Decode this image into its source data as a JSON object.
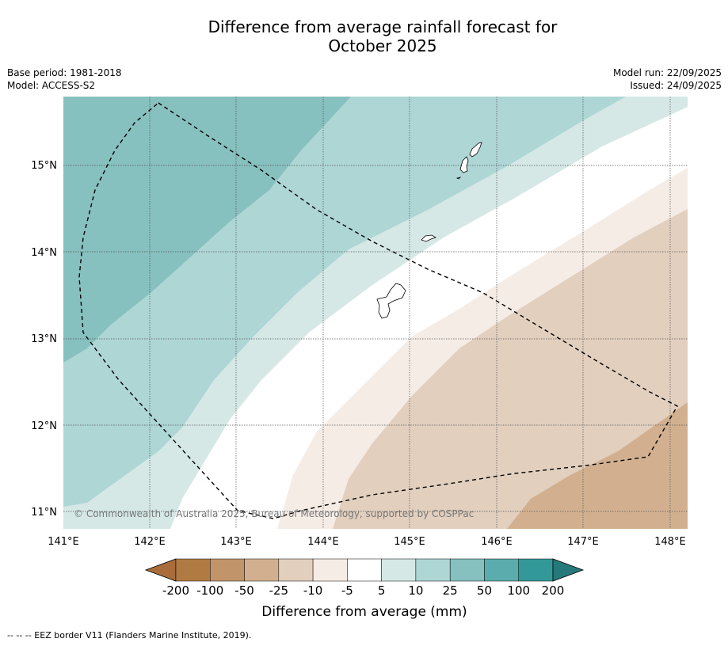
{
  "title_line1": "Difference from average rainfall forecast for",
  "title_line2": "October 2025",
  "meta_left": {
    "base_period": "Base period: 1981-2018",
    "model": "Model: ACCESS-S2"
  },
  "meta_right": {
    "model_run": "Model run: 22/09/2025",
    "issued": "Issued: 24/09/2025"
  },
  "map": {
    "lat_labels": [
      "15°N",
      "14°N",
      "13°N",
      "12°N",
      "11°N"
    ],
    "lon_labels": [
      "141°E",
      "142°E",
      "143°E",
      "144°E",
      "145°E",
      "146°E",
      "147°E",
      "148°E"
    ],
    "credit": "© Commonwealth of Australia 2025, Bureau of Meteorology, supported by COSPPac"
  },
  "colorbar": {
    "ticks": [
      "-200",
      "-100",
      "-50",
      "-25",
      "-10",
      "-5",
      "5",
      "10",
      "25",
      "50",
      "100",
      "200"
    ],
    "title": "Difference from average (mm)",
    "colors": [
      "#a86d3a",
      "#b07a43",
      "#c2946a",
      "#d2b08f",
      "#e2cfbe",
      "#f5ece6",
      "#ffffff",
      "#d5e8e6",
      "#add6d5",
      "#86c0bf",
      "#5bacac",
      "#339898",
      "#26797a"
    ]
  },
  "eez_note": "--  --  -- EEZ border V11 (Flanders Marine Institute, 2019)."
}
